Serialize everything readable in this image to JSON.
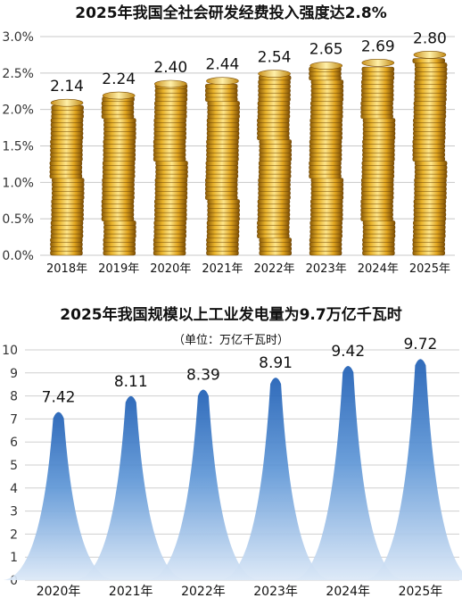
{
  "chart_data": [
    {
      "type": "bar",
      "title": "2025年我国全社会研发经费投入强度达2.8%",
      "categories": [
        "2018年",
        "2019年",
        "2020年",
        "2021年",
        "2022年",
        "2023年",
        "2024年",
        "2025年"
      ],
      "values": [
        2.14,
        2.24,
        2.4,
        2.44,
        2.54,
        2.65,
        2.69,
        2.8
      ],
      "data_labels": [
        "2.14",
        "2.24",
        "2.40",
        "2.44",
        "2.54",
        "2.65",
        "2.69",
        "2.80"
      ],
      "y_ticks": [
        "0.0%",
        "0.5%",
        "1.0%",
        "1.5%",
        "2.0%",
        "2.5%",
        "3.0%"
      ],
      "ylim": [
        0,
        3.0
      ],
      "grid": true,
      "bar_style": "stacked gold coins",
      "color": "#d9a21a"
    },
    {
      "type": "area",
      "title": "2025年我国规模以上工业发电量为9.7万亿千瓦时",
      "unit": "（单位：万亿千瓦时）",
      "categories": [
        "2020年",
        "2021年",
        "2022年",
        "2023年",
        "2024年",
        "2025年"
      ],
      "values": [
        7.42,
        8.11,
        8.39,
        8.91,
        9.42,
        9.72
      ],
      "data_labels": [
        "7.42",
        "8.11",
        "8.39",
        "8.91",
        "9.42",
        "9.72"
      ],
      "y_ticks": [
        "0",
        "1",
        "2",
        "3",
        "4",
        "5",
        "6",
        "7",
        "8",
        "9",
        "10"
      ],
      "ylim": [
        0,
        10
      ],
      "grid": true,
      "shape": "peaks",
      "color": "#2f6fc0"
    }
  ]
}
